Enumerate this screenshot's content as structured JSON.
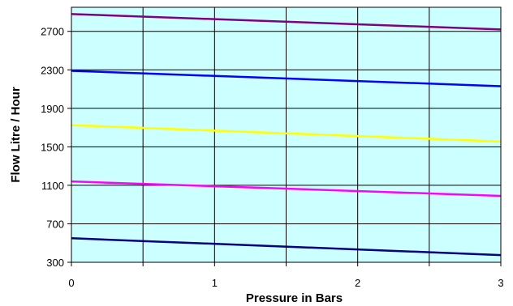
{
  "chart_data": {
    "type": "line",
    "title": "",
    "xlabel": "Pressure in Bars",
    "ylabel": "Flow Litre / Hour",
    "xlim": [
      0,
      3
    ],
    "ylim": [
      300,
      2950
    ],
    "x_ticks": [
      0,
      0.5,
      1,
      1.5,
      2,
      2.5,
      3
    ],
    "x_tick_labels": [
      "0",
      "",
      "1",
      "",
      "2",
      "",
      "3"
    ],
    "y_ticks": [
      300,
      700,
      1100,
      1500,
      1900,
      2300,
      2700
    ],
    "y_tick_labels": [
      "300",
      "700",
      "1100",
      "1500",
      "1900",
      "2300",
      "2700"
    ],
    "grid": true,
    "plot_background": "#ccffff",
    "series": [
      {
        "x": [
          0,
          3
        ],
        "values": [
          2880,
          2720
        ],
        "color": "#800080"
      },
      {
        "x": [
          0,
          3
        ],
        "values": [
          2290,
          2130
        ],
        "color": "#0000ff"
      },
      {
        "x": [
          0,
          3
        ],
        "values": [
          1725,
          1555
        ],
        "color": "#ffff00"
      },
      {
        "x": [
          0,
          3
        ],
        "values": [
          1140,
          990
        ],
        "color": "#ff00ff"
      },
      {
        "x": [
          0,
          3
        ],
        "values": [
          550,
          375
        ],
        "color": "#000080"
      }
    ]
  }
}
